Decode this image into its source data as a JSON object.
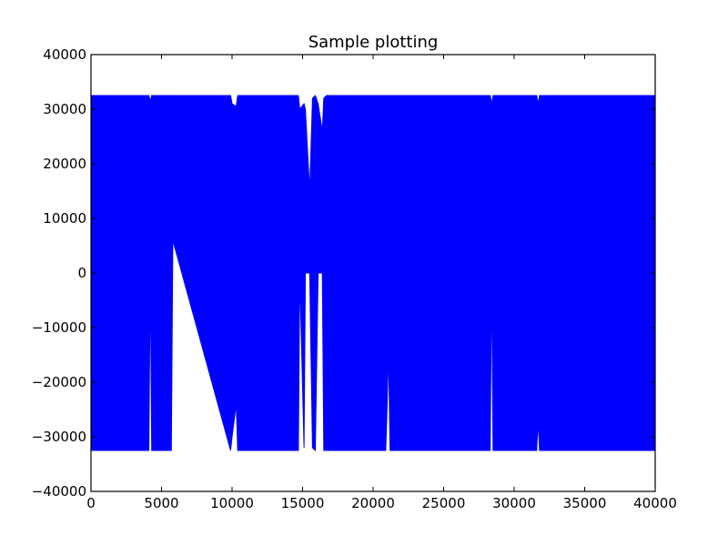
{
  "chart_data": {
    "type": "line",
    "title": "Sample plotting",
    "xlabel": "",
    "ylabel": "",
    "xlim": [
      0,
      40000
    ],
    "ylim": [
      -40000,
      40000
    ],
    "x_ticks": [
      0,
      5000,
      10000,
      15000,
      20000,
      25000,
      30000,
      35000,
      40000
    ],
    "x_tick_labels": [
      "0",
      "5000",
      "10000",
      "15000",
      "20000",
      "25000",
      "30000",
      "35000",
      "40000"
    ],
    "y_ticks": [
      -40000,
      -30000,
      -20000,
      -10000,
      0,
      10000,
      20000,
      30000,
      40000
    ],
    "y_tick_labels": [
      "−40000",
      "−30000",
      "−20000",
      "−10000",
      "0",
      "10000",
      "20000",
      "30000",
      "40000"
    ],
    "grid": false,
    "legend": "none",
    "line_color": "#0000ff",
    "series": [
      {
        "envelope": {
          "x": [
            0,
            4100,
            4200,
            4300,
            5700,
            5800,
            9900,
            10000,
            10300,
            10400,
            14700,
            14800,
            15100,
            15200,
            15500,
            15700,
            15900,
            16100,
            16400,
            16500,
            16700,
            16800,
            20900,
            21000,
            21100,
            21200,
            28300,
            28400,
            28500,
            31600,
            31700,
            31800,
            40000
          ],
          "max": [
            32500,
            32500,
            31500,
            32500,
            32500,
            32500,
            32500,
            31000,
            30500,
            32500,
            32500,
            30000,
            31000,
            30000,
            15000,
            32000,
            32500,
            31000,
            26000,
            32000,
            32500,
            32500,
            32500,
            32500,
            32500,
            32500,
            32500,
            31000,
            32500,
            32500,
            31000,
            32500,
            32500
          ],
          "min": [
            -32500,
            -32500,
            0,
            -32500,
            -32500,
            6000,
            -32500,
            -30000,
            -24000,
            -32500,
            -32500,
            0,
            -32000,
            0,
            0,
            -32000,
            -32500,
            0,
            0,
            -32500,
            -32500,
            -32500,
            -32500,
            -24000,
            -14000,
            -32500,
            -32500,
            0,
            -32500,
            -32500,
            -27000,
            -32500,
            -32500
          ]
        }
      }
    ]
  }
}
